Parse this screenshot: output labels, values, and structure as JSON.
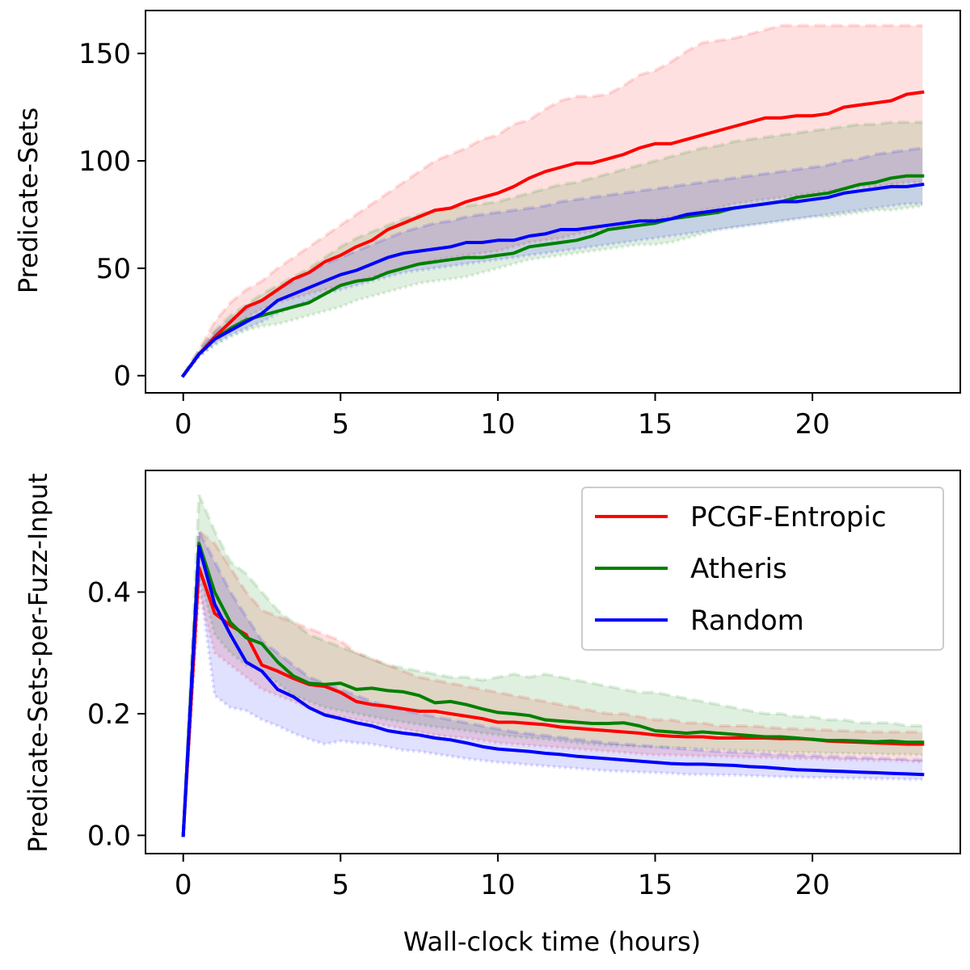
{
  "figure": {
    "xlabel": "Wall-clock time (hours)",
    "legend_placement": "upper right of bottom panel"
  },
  "chart_data": [
    {
      "type": "line",
      "title": "",
      "xlabel": "",
      "ylabel": "Predicate-Sets",
      "xlim": [
        -1.2,
        24.7
      ],
      "ylim": [
        -8,
        170
      ],
      "xticks": [
        0,
        5,
        10,
        15,
        20
      ],
      "xtick_labels": [
        "0",
        "5",
        "10",
        "15",
        "20"
      ],
      "yticks": [
        0,
        50,
        100,
        150
      ],
      "ytick_labels": [
        "0",
        "50",
        "100",
        "150"
      ],
      "grid": false,
      "x": [
        0,
        0.5,
        1,
        1.5,
        2,
        2.5,
        3,
        3.5,
        4,
        4.5,
        5,
        5.5,
        6,
        6.5,
        7,
        7.5,
        8,
        8.5,
        9,
        9.5,
        10,
        10.5,
        11,
        11.5,
        12,
        12.5,
        13,
        13.5,
        14,
        14.5,
        15,
        15.5,
        16,
        16.5,
        17,
        17.5,
        18,
        18.5,
        19,
        19.5,
        20,
        20.5,
        21,
        21.5,
        22,
        22.5,
        23,
        23.5
      ],
      "series": [
        {
          "name": "PCGF-Entropic",
          "color": "#ff0000",
          "values": [
            0,
            10,
            18,
            25,
            32,
            35,
            40,
            45,
            48,
            53,
            56,
            60,
            63,
            68,
            71,
            74,
            77,
            78,
            81,
            83,
            85,
            88,
            92,
            95,
            97,
            99,
            99,
            101,
            103,
            106,
            108,
            108,
            110,
            112,
            114,
            116,
            118,
            120,
            120,
            121,
            121,
            122,
            125,
            126,
            127,
            128,
            131,
            132
          ],
          "band_upper": [
            0,
            12,
            25,
            34,
            40,
            44,
            50,
            55,
            60,
            65,
            70,
            75,
            80,
            85,
            90,
            95,
            100,
            103,
            106,
            110,
            112,
            117,
            119,
            124,
            128,
            130,
            130,
            131,
            135,
            140,
            142,
            146,
            151,
            155,
            156,
            157,
            159,
            161,
            163,
            163,
            163,
            163,
            163,
            163,
            163,
            163,
            163,
            163
          ],
          "band_lower": [
            0,
            9,
            16,
            22,
            27,
            31,
            34,
            36,
            38,
            40,
            42,
            44,
            46,
            48,
            50,
            52,
            54,
            55,
            56,
            57,
            58,
            60,
            62,
            63,
            64,
            66,
            67,
            69,
            70,
            72,
            73,
            74,
            75,
            77,
            78,
            80,
            81,
            82,
            83,
            84,
            85,
            86,
            87,
            88,
            88,
            89,
            90,
            90
          ]
        },
        {
          "name": "Atheris",
          "color": "#008000",
          "values": [
            0,
            10,
            17,
            22,
            26,
            28,
            30,
            32,
            34,
            38,
            42,
            44,
            45,
            48,
            50,
            52,
            53,
            54,
            55,
            55,
            56,
            57,
            60,
            61,
            62,
            63,
            65,
            68,
            69,
            70,
            71,
            73,
            74,
            75,
            76,
            78,
            79,
            80,
            81,
            83,
            84,
            85,
            87,
            89,
            90,
            92,
            93,
            93
          ],
          "band_upper": [
            0,
            12,
            21,
            28,
            33,
            38,
            42,
            46,
            50,
            55,
            60,
            64,
            67,
            70,
            73,
            75,
            77,
            78,
            79,
            80,
            81,
            83,
            85,
            87,
            89,
            90,
            92,
            94,
            96,
            98,
            100,
            102,
            104,
            106,
            107,
            109,
            110,
            111,
            112,
            113,
            114,
            115,
            116,
            117,
            117,
            118,
            118,
            118
          ],
          "band_lower": [
            0,
            9,
            14,
            18,
            21,
            23,
            24,
            26,
            28,
            30,
            32,
            35,
            37,
            39,
            41,
            43,
            44,
            45,
            46,
            48,
            50,
            52,
            54,
            55,
            56,
            57,
            58,
            59,
            60,
            61,
            61,
            62,
            64,
            66,
            68,
            69,
            70,
            71,
            72,
            73,
            74,
            74,
            75,
            76,
            77,
            77,
            78,
            79
          ]
        },
        {
          "name": "Random",
          "color": "#0000ff",
          "values": [
            0,
            10,
            17,
            21,
            25,
            29,
            35,
            38,
            41,
            44,
            47,
            49,
            52,
            55,
            57,
            58,
            59,
            60,
            62,
            62,
            63,
            63,
            65,
            66,
            68,
            68,
            69,
            70,
            71,
            72,
            72,
            73,
            75,
            76,
            77,
            78,
            79,
            80,
            81,
            81,
            82,
            83,
            85,
            86,
            87,
            88,
            88,
            89
          ],
          "band_upper": [
            0,
            11,
            20,
            26,
            31,
            35,
            40,
            44,
            48,
            52,
            55,
            58,
            61,
            64,
            67,
            69,
            71,
            72,
            74,
            75,
            76,
            77,
            78,
            79,
            81,
            82,
            83,
            84,
            85,
            86,
            87,
            88,
            89,
            90,
            91,
            92,
            93,
            94,
            95,
            96,
            97,
            98,
            100,
            101,
            103,
            104,
            105,
            106
          ],
          "band_lower": [
            0,
            9,
            15,
            19,
            22,
            25,
            29,
            32,
            35,
            38,
            40,
            42,
            44,
            46,
            48,
            49,
            50,
            51,
            52,
            53,
            54,
            55,
            56,
            57,
            58,
            59,
            60,
            61,
            62,
            63,
            64,
            65,
            66,
            67,
            68,
            69,
            70,
            71,
            72,
            73,
            74,
            75,
            76,
            77,
            78,
            79,
            80,
            80
          ]
        }
      ]
    },
    {
      "type": "line",
      "title": "",
      "xlabel": "Wall-clock time (hours)",
      "ylabel": "Predicate-Sets-per-Fuzz-Input",
      "xlim": [
        -1.2,
        24.7
      ],
      "ylim": [
        -0.03,
        0.6
      ],
      "xticks": [
        0,
        5,
        10,
        15,
        20
      ],
      "xtick_labels": [
        "0",
        "5",
        "10",
        "15",
        "20"
      ],
      "yticks": [
        0.0,
        0.2,
        0.4
      ],
      "ytick_labels": [
        "0.0",
        "0.2",
        "0.4"
      ],
      "grid": false,
      "legend": [
        "PCGF-Entropic",
        "Atheris",
        "Random"
      ],
      "x": [
        0,
        0.5,
        1,
        1.5,
        2,
        2.5,
        3,
        3.5,
        4,
        4.5,
        5,
        5.5,
        6,
        6.5,
        7,
        7.5,
        8,
        8.5,
        9,
        9.5,
        10,
        10.5,
        11,
        11.5,
        12,
        12.5,
        13,
        13.5,
        14,
        14.5,
        15,
        15.5,
        16,
        16.5,
        17,
        17.5,
        18,
        18.5,
        19,
        19.5,
        20,
        20.5,
        21,
        21.5,
        22,
        22.5,
        23,
        23.5
      ],
      "series": [
        {
          "name": "PCGF-Entropic",
          "color": "#ff0000",
          "values": [
            0,
            0.44,
            0.365,
            0.345,
            0.33,
            0.28,
            0.27,
            0.258,
            0.248,
            0.245,
            0.235,
            0.22,
            0.215,
            0.212,
            0.208,
            0.204,
            0.204,
            0.2,
            0.196,
            0.192,
            0.186,
            0.186,
            0.184,
            0.182,
            0.178,
            0.176,
            0.174,
            0.172,
            0.17,
            0.168,
            0.165,
            0.163,
            0.162,
            0.162,
            0.16,
            0.16,
            0.16,
            0.16,
            0.159,
            0.159,
            0.158,
            0.155,
            0.154,
            0.153,
            0.152,
            0.151,
            0.15,
            0.15
          ],
          "band_upper": [
            0,
            0.5,
            0.48,
            0.44,
            0.4,
            0.37,
            0.36,
            0.35,
            0.34,
            0.33,
            0.32,
            0.3,
            0.29,
            0.28,
            0.27,
            0.26,
            0.255,
            0.25,
            0.245,
            0.24,
            0.235,
            0.23,
            0.225,
            0.22,
            0.215,
            0.21,
            0.205,
            0.2,
            0.2,
            0.195,
            0.19,
            0.19,
            0.185,
            0.185,
            0.18,
            0.18,
            0.18,
            0.178,
            0.176,
            0.175,
            0.174,
            0.173,
            0.172,
            0.171,
            0.17,
            0.17,
            0.17,
            0.17
          ],
          "band_lower": [
            0,
            0.4,
            0.3,
            0.28,
            0.26,
            0.24,
            0.23,
            0.22,
            0.21,
            0.2,
            0.195,
            0.19,
            0.185,
            0.18,
            0.175,
            0.17,
            0.165,
            0.162,
            0.16,
            0.156,
            0.152,
            0.15,
            0.148,
            0.146,
            0.144,
            0.142,
            0.14,
            0.138,
            0.136,
            0.134,
            0.132,
            0.132,
            0.131,
            0.13,
            0.13,
            0.129,
            0.128,
            0.128,
            0.127,
            0.126,
            0.126,
            0.125,
            0.124,
            0.124,
            0.123,
            0.123,
            0.122,
            0.12
          ]
        },
        {
          "name": "Atheris",
          "color": "#008000",
          "values": [
            0,
            0.48,
            0.4,
            0.35,
            0.325,
            0.315,
            0.285,
            0.262,
            0.25,
            0.248,
            0.25,
            0.24,
            0.242,
            0.238,
            0.236,
            0.23,
            0.218,
            0.22,
            0.215,
            0.208,
            0.202,
            0.2,
            0.197,
            0.19,
            0.188,
            0.186,
            0.184,
            0.184,
            0.185,
            0.18,
            0.172,
            0.17,
            0.168,
            0.17,
            0.168,
            0.166,
            0.164,
            0.162,
            0.162,
            0.16,
            0.158,
            0.156,
            0.156,
            0.155,
            0.154,
            0.155,
            0.153,
            0.153
          ],
          "band_upper": [
            0,
            0.56,
            0.5,
            0.45,
            0.43,
            0.4,
            0.37,
            0.35,
            0.33,
            0.32,
            0.31,
            0.3,
            0.29,
            0.28,
            0.275,
            0.27,
            0.265,
            0.26,
            0.26,
            0.255,
            0.26,
            0.265,
            0.26,
            0.265,
            0.26,
            0.255,
            0.25,
            0.245,
            0.24,
            0.235,
            0.235,
            0.23,
            0.225,
            0.22,
            0.215,
            0.21,
            0.205,
            0.2,
            0.2,
            0.195,
            0.195,
            0.19,
            0.19,
            0.185,
            0.185,
            0.185,
            0.18,
            0.18
          ],
          "band_lower": [
            0,
            0.43,
            0.33,
            0.3,
            0.28,
            0.27,
            0.25,
            0.23,
            0.22,
            0.21,
            0.205,
            0.2,
            0.195,
            0.19,
            0.186,
            0.182,
            0.178,
            0.175,
            0.172,
            0.168,
            0.165,
            0.162,
            0.16,
            0.158,
            0.155,
            0.152,
            0.15,
            0.148,
            0.147,
            0.146,
            0.145,
            0.144,
            0.143,
            0.142,
            0.141,
            0.14,
            0.139,
            0.138,
            0.137,
            0.136,
            0.136,
            0.135,
            0.135,
            0.134,
            0.134,
            0.133,
            0.133,
            0.132
          ]
        },
        {
          "name": "Random",
          "color": "#0000ff",
          "values": [
            0,
            0.475,
            0.38,
            0.33,
            0.285,
            0.27,
            0.24,
            0.228,
            0.21,
            0.198,
            0.192,
            0.185,
            0.18,
            0.172,
            0.168,
            0.165,
            0.16,
            0.157,
            0.152,
            0.146,
            0.142,
            0.14,
            0.138,
            0.135,
            0.133,
            0.13,
            0.128,
            0.126,
            0.124,
            0.122,
            0.12,
            0.118,
            0.117,
            0.117,
            0.116,
            0.115,
            0.113,
            0.112,
            0.11,
            0.108,
            0.107,
            0.106,
            0.105,
            0.104,
            0.103,
            0.102,
            0.101,
            0.1
          ],
          "band_upper": [
            0,
            0.5,
            0.45,
            0.4,
            0.36,
            0.32,
            0.3,
            0.28,
            0.26,
            0.25,
            0.24,
            0.23,
            0.22,
            0.212,
            0.206,
            0.2,
            0.195,
            0.19,
            0.185,
            0.18,
            0.175,
            0.17,
            0.167,
            0.164,
            0.161,
            0.158,
            0.155,
            0.152,
            0.15,
            0.148,
            0.146,
            0.144,
            0.142,
            0.14,
            0.138,
            0.137,
            0.136,
            0.134,
            0.133,
            0.132,
            0.131,
            0.13,
            0.129,
            0.128,
            0.127,
            0.126,
            0.125,
            0.124
          ],
          "band_lower": [
            0,
            0.42,
            0.23,
            0.21,
            0.205,
            0.19,
            0.18,
            0.168,
            0.158,
            0.15,
            0.155,
            0.152,
            0.15,
            0.145,
            0.14,
            0.138,
            0.134,
            0.13,
            0.126,
            0.123,
            0.12,
            0.118,
            0.116,
            0.114,
            0.112,
            0.11,
            0.108,
            0.106,
            0.105,
            0.104,
            0.103,
            0.102,
            0.1,
            0.1,
            0.099,
            0.099,
            0.098,
            0.097,
            0.096,
            0.096,
            0.095,
            0.095,
            0.094,
            0.094,
            0.093,
            0.093,
            0.092,
            0.092
          ]
        }
      ]
    }
  ]
}
